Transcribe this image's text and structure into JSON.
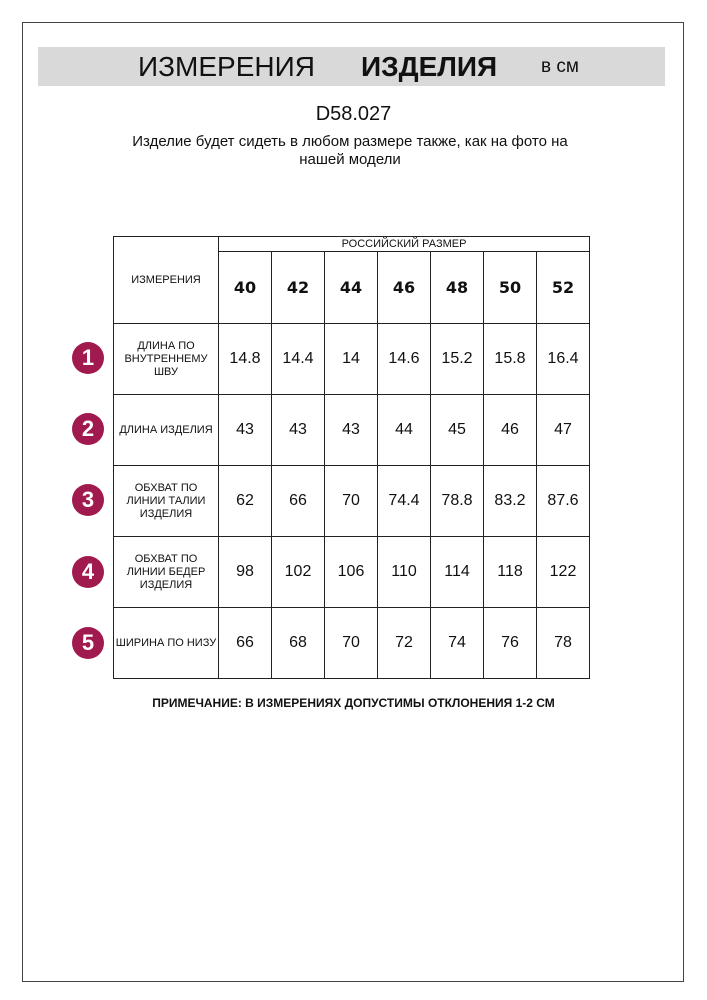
{
  "header": {
    "title_regular": "ИЗМЕРЕНИЯ",
    "title_bold": "ИЗДЕЛИЯ",
    "unit": "в см"
  },
  "article": "D58.027",
  "subtitle": "Изделие будет сидеть в любом размере также, как на фото на нашей модели",
  "table": {
    "corner_label": "ИЗМЕРЕНИЯ",
    "group_header": "РОССИЙСКИЙ РАЗМЕР",
    "sizes": [
      "40",
      "42",
      "44",
      "46",
      "48",
      "50",
      "52"
    ],
    "rows": [
      {
        "num": "1",
        "label": "ДЛИНА ПО ВНУТРЕННЕМУ ШВУ",
        "values": [
          "14.8",
          "14.4",
          "14",
          "14.6",
          "15.2",
          "15.8",
          "16.4"
        ]
      },
      {
        "num": "2",
        "label": "ДЛИНА ИЗДЕЛИЯ",
        "values": [
          "43",
          "43",
          "43",
          "44",
          "45",
          "46",
          "47"
        ]
      },
      {
        "num": "3",
        "label": "ОБХВАТ ПО ЛИНИИ ТАЛИИ ИЗДЕЛИЯ",
        "values": [
          "62",
          "66",
          "70",
          "74.4",
          "78.8",
          "83.2",
          "87.6"
        ]
      },
      {
        "num": "4",
        "label": "ОБХВАТ ПО ЛИНИИ БЕДЕР ИЗДЕЛИЯ",
        "values": [
          "98",
          "102",
          "106",
          "110",
          "114",
          "118",
          "122"
        ]
      },
      {
        "num": "5",
        "label": "ШИРИНА ПО НИЗУ",
        "values": [
          "66",
          "68",
          "70",
          "72",
          "74",
          "76",
          "78"
        ]
      }
    ]
  },
  "note": "ПРИМЕЧАНИЕ: В ИЗМЕРЕНИЯХ ДОПУСТИМЫ ОТКЛОНЕНИЯ 1-2 СМ",
  "colors": {
    "badge": "#a01a4f",
    "header_bar": "#d9d9d9"
  }
}
